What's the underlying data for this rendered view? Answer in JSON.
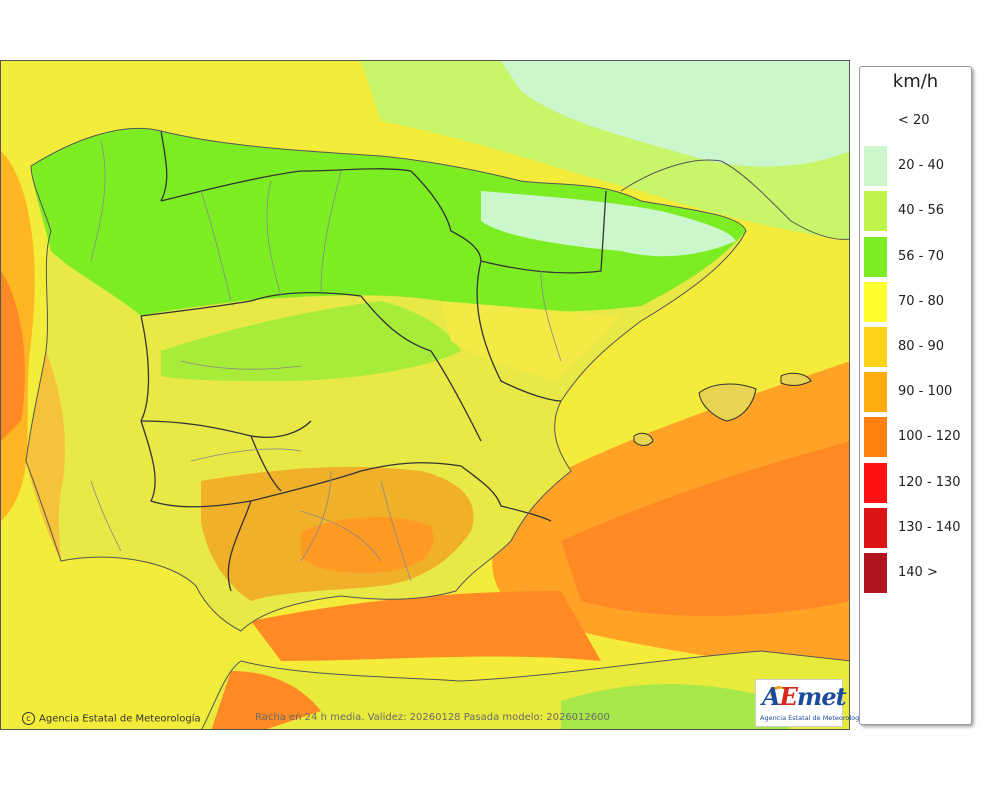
{
  "legend": {
    "unit": "km/h",
    "items": [
      {
        "label": "< 20",
        "color": "#ffffff"
      },
      {
        "label": "20 - 40",
        "color": "#ccf7cc"
      },
      {
        "label": "40 - 56",
        "color": "#bff54a"
      },
      {
        "label": "56 - 70",
        "color": "#7ded23"
      },
      {
        "label": "70 - 80",
        "color": "#ffff2e"
      },
      {
        "label": "80 - 90",
        "color": "#ffd21a"
      },
      {
        "label": "90 - 100",
        "color": "#ffad0e"
      },
      {
        "label": "100 - 120",
        "color": "#ff8110"
      },
      {
        "label": "120 - 130",
        "color": "#ff1212"
      },
      {
        "label": "130 - 140",
        "color": "#dc1414"
      },
      {
        "label": "140 >",
        "color": "#b0141e"
      }
    ]
  },
  "footer": {
    "copyright": "Agencia Estatal de Meteorología",
    "caption": "Racha en 24 h media. Validez: 20260128 Pasada modelo: 2026012600"
  },
  "logo": {
    "mark_a": "A",
    "mark_e": "E",
    "mark_rest": "met",
    "subtitle": "Agencia Estatal de Meteorología"
  },
  "colors": {
    "sea_orange": "#ff9933",
    "sea_yellow": "#fff24a",
    "land_green": "#7ded23",
    "land_yellow": "#e8e84a",
    "border": "#333333"
  }
}
